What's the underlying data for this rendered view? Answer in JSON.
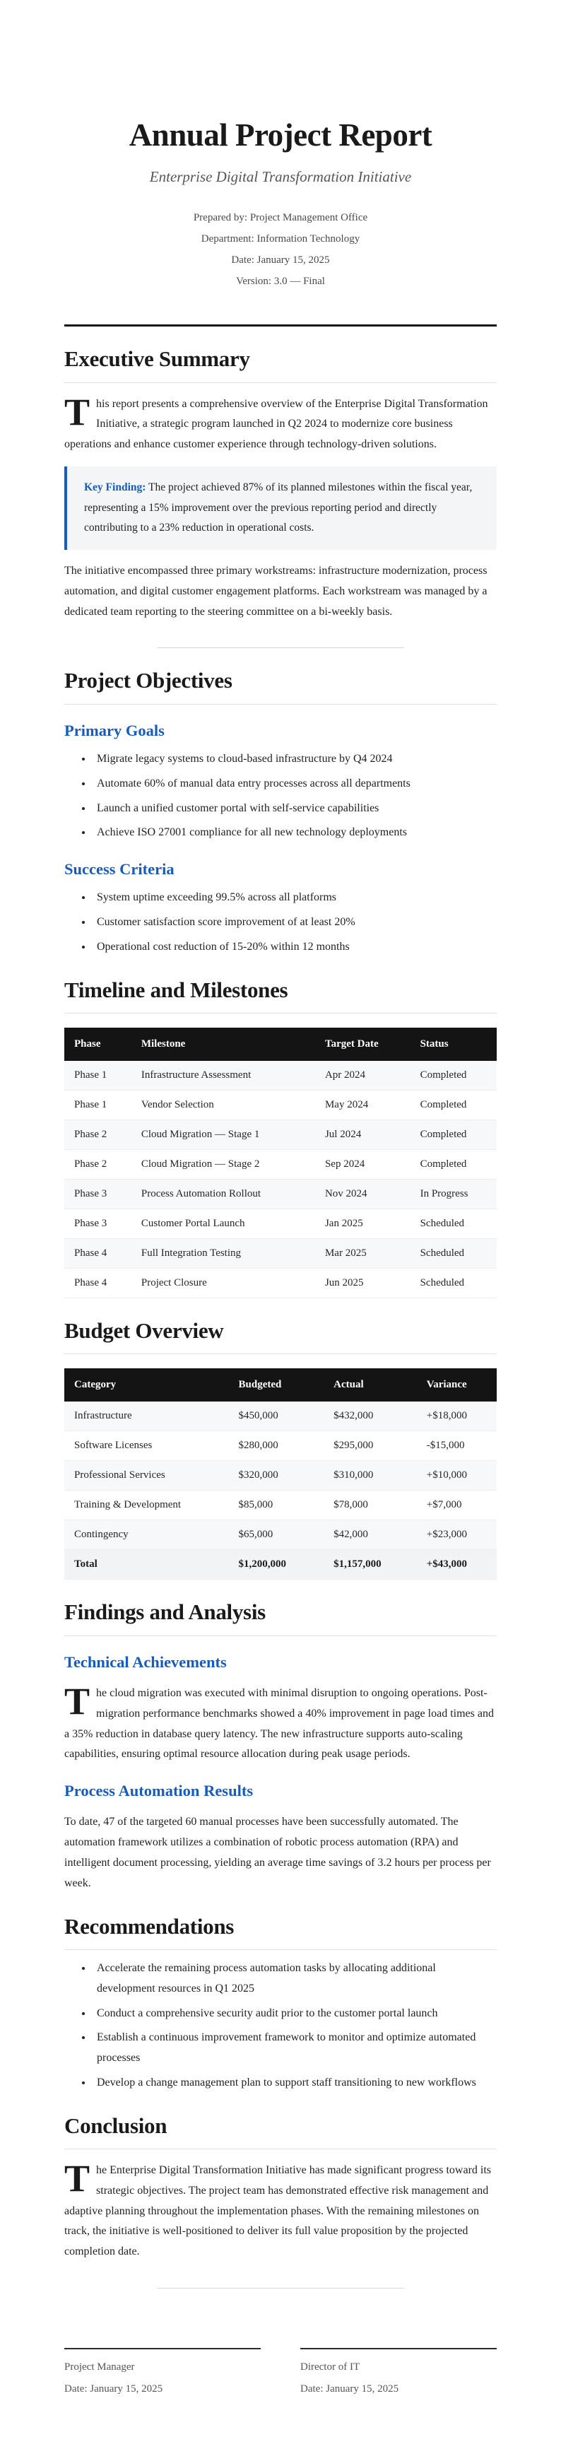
{
  "colors": {
    "accent": "#135cc4",
    "callout_bg": "#f4f5f7",
    "table_header_bg": "#141414",
    "zebra_row_bg": "#f7f8f9",
    "thick_rule": "#161616"
  },
  "header": {
    "title": "Annual Project Report",
    "subtitle": "Enterprise Digital Transformation Initiative",
    "meta": [
      "Prepared by: Project Management Office",
      "Department: Information Technology",
      "Date: January 15, 2025",
      "Version: 3.0 — Final"
    ]
  },
  "executive_summary": {
    "heading": "Executive Summary",
    "p1_lead": "T",
    "p1_text": "his report presents a comprehensive overview of the Enterprise Digital Transformation Initiative, a strategic program launched in Q2 2024 to modernize core business operations and enhance customer experience through technology-driven solutions.",
    "callout_label": "Key Finding:",
    "callout_text": " The project achieved 87% of its planned milestones within the fiscal year, representing a 15% improvement over the previous reporting period and directly contributing to a 23% reduction in operational costs.",
    "p2": "The initiative encompassed three primary workstreams: infrastructure modernization, process automation, and digital customer engagement platforms. Each workstream was managed by a dedicated team reporting to the steering committee on a bi-weekly basis."
  },
  "objectives": {
    "heading": "Project Objectives",
    "primary": {
      "heading": "Primary Goals",
      "items": [
        "Migrate legacy systems to cloud-based infrastructure by Q4 2024",
        "Automate 60% of manual data entry processes across all departments",
        "Launch a unified customer portal with self-service capabilities",
        "Achieve ISO 27001 compliance for all new technology deployments"
      ]
    },
    "success": {
      "heading": "Success Criteria",
      "items": [
        "System uptime exceeding 99.5% across all platforms",
        "Customer satisfaction score improvement of at least 20%",
        "Operational cost reduction of 15-20% within 12 months"
      ]
    }
  },
  "timeline": {
    "heading": "Timeline and Milestones",
    "columns": [
      "Phase",
      "Milestone",
      "Target Date",
      "Status"
    ],
    "rows": [
      {
        "phase": "Phase 1",
        "milestone": "Infrastructure Assessment",
        "date": "Apr 2024",
        "status": "Completed"
      },
      {
        "phase": "Phase 1",
        "milestone": "Vendor Selection",
        "date": "May 2024",
        "status": "Completed"
      },
      {
        "phase": "Phase 2",
        "milestone": "Cloud Migration — Stage 1",
        "date": "Jul 2024",
        "status": "Completed"
      },
      {
        "phase": "Phase 2",
        "milestone": "Cloud Migration — Stage 2",
        "date": "Sep 2024",
        "status": "Completed"
      },
      {
        "phase": "Phase 3",
        "milestone": "Process Automation Rollout",
        "date": "Nov 2024",
        "status": "In Progress"
      },
      {
        "phase": "Phase 3",
        "milestone": "Customer Portal Launch",
        "date": "Jan 2025",
        "status": "Scheduled"
      },
      {
        "phase": "Phase 4",
        "milestone": "Full Integration Testing",
        "date": "Mar 2025",
        "status": "Scheduled"
      },
      {
        "phase": "Phase 4",
        "milestone": "Project Closure",
        "date": "Jun 2025",
        "status": "Scheduled"
      }
    ]
  },
  "budget": {
    "heading": "Budget Overview",
    "columns": [
      "Category",
      "Budgeted",
      "Actual",
      "Variance"
    ],
    "rows": [
      {
        "category": "Infrastructure",
        "budgeted": "$450,000",
        "actual": "$432,000",
        "variance": "+$18,000"
      },
      {
        "category": "Software Licenses",
        "budgeted": "$280,000",
        "actual": "$295,000",
        "variance": "-$15,000"
      },
      {
        "category": "Professional Services",
        "budgeted": "$320,000",
        "actual": "$310,000",
        "variance": "+$10,000"
      },
      {
        "category": "Training & Development",
        "budgeted": "$85,000",
        "actual": "$78,000",
        "variance": "+$7,000"
      },
      {
        "category": "Contingency",
        "budgeted": "$65,000",
        "actual": "$42,000",
        "variance": "+$23,000"
      }
    ],
    "total": {
      "category": "Total",
      "budgeted": "$1,200,000",
      "actual": "$1,157,000",
      "variance": "+$43,000"
    }
  },
  "findings": {
    "heading": "Findings and Analysis",
    "technical_heading": "Technical Achievements",
    "p1_lead": "T",
    "p1_text": "he cloud migration was executed with minimal disruption to ongoing operations. Post-migration performance benchmarks showed a 40% improvement in page load times and a 35% reduction in database query latency. The new infrastructure supports auto-scaling capabilities, ensuring optimal resource allocation during peak usage periods.",
    "automation_heading": "Process Automation Results",
    "p2": "To date, 47 of the targeted 60 manual processes have been successfully automated. The automation framework utilizes a combination of robotic process automation (RPA) and intelligent document processing, yielding an average time savings of 3.2 hours per process per week."
  },
  "recommendations": {
    "heading": "Recommendations",
    "items": [
      "Accelerate the remaining process automation tasks by allocating additional development resources in Q1 2025",
      "Conduct a comprehensive security audit prior to the customer portal launch",
      "Establish a continuous improvement framework to monitor and optimize automated processes",
      "Develop a change management plan to support staff transitioning to new workflows"
    ]
  },
  "conclusion": {
    "heading": "Conclusion",
    "p_lead": "T",
    "p_text": "he Enterprise Digital Transformation Initiative has made significant progress toward its strategic objectives. The project team has demonstrated effective risk management and adaptive planning throughout the implementation phases. With the remaining milestones on track, the initiative is well-positioned to deliver its full value proposition by the projected completion date.",
    "signatures": [
      {
        "role": "Project Manager",
        "date": "Date: January 15, 2025"
      },
      {
        "role": "Director of IT",
        "date": "Date: January 15, 2025"
      }
    ]
  }
}
